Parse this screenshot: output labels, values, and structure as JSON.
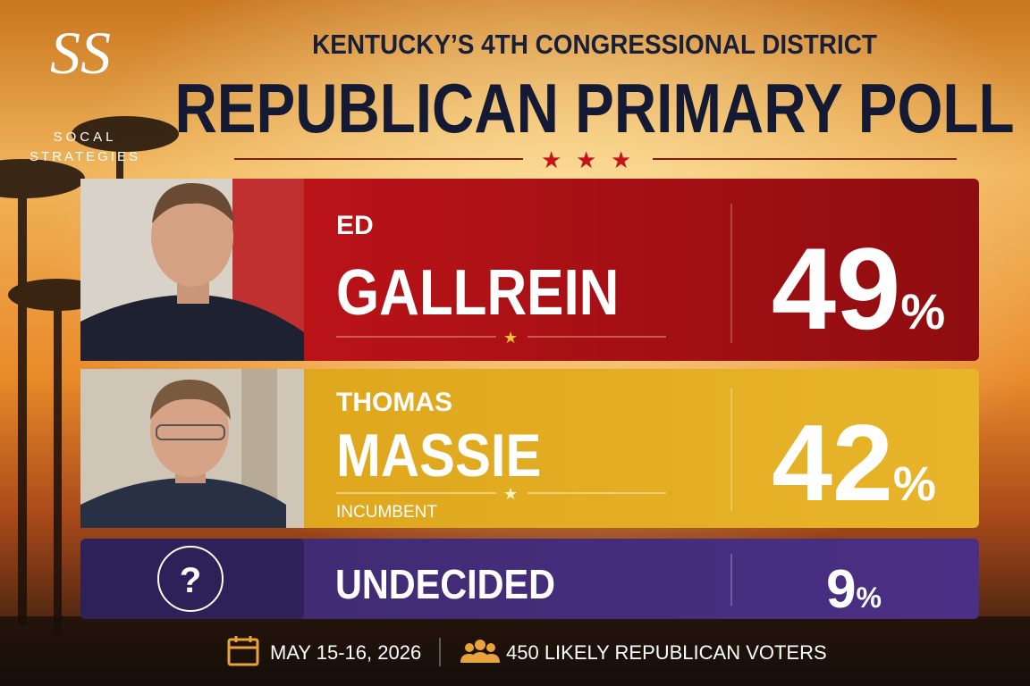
{
  "logo": {
    "mark": "SS",
    "line1": "SOCAL",
    "line2": "STRATEGIES"
  },
  "header": {
    "subtitle": "KENTUCKY’S 4TH CONGRESSIONAL DISTRICT",
    "title": "REPUBLICAN PRIMARY POLL"
  },
  "candidates": [
    {
      "first_name": "ED",
      "last_name": "GALLREIN",
      "percent": 49,
      "percent_sign": "%"
    },
    {
      "first_name": "THOMAS",
      "last_name": "MASSIE",
      "note": "INCUMBENT",
      "percent": 42,
      "percent_sign": "%"
    }
  ],
  "undecided": {
    "icon": "?",
    "label": "UNDECIDED",
    "percent": 9,
    "percent_sign": "%"
  },
  "footer": {
    "dates": "MAY 15-16, 2026",
    "sample": "450 LIKELY REPUBLICAN VOTERS"
  }
}
